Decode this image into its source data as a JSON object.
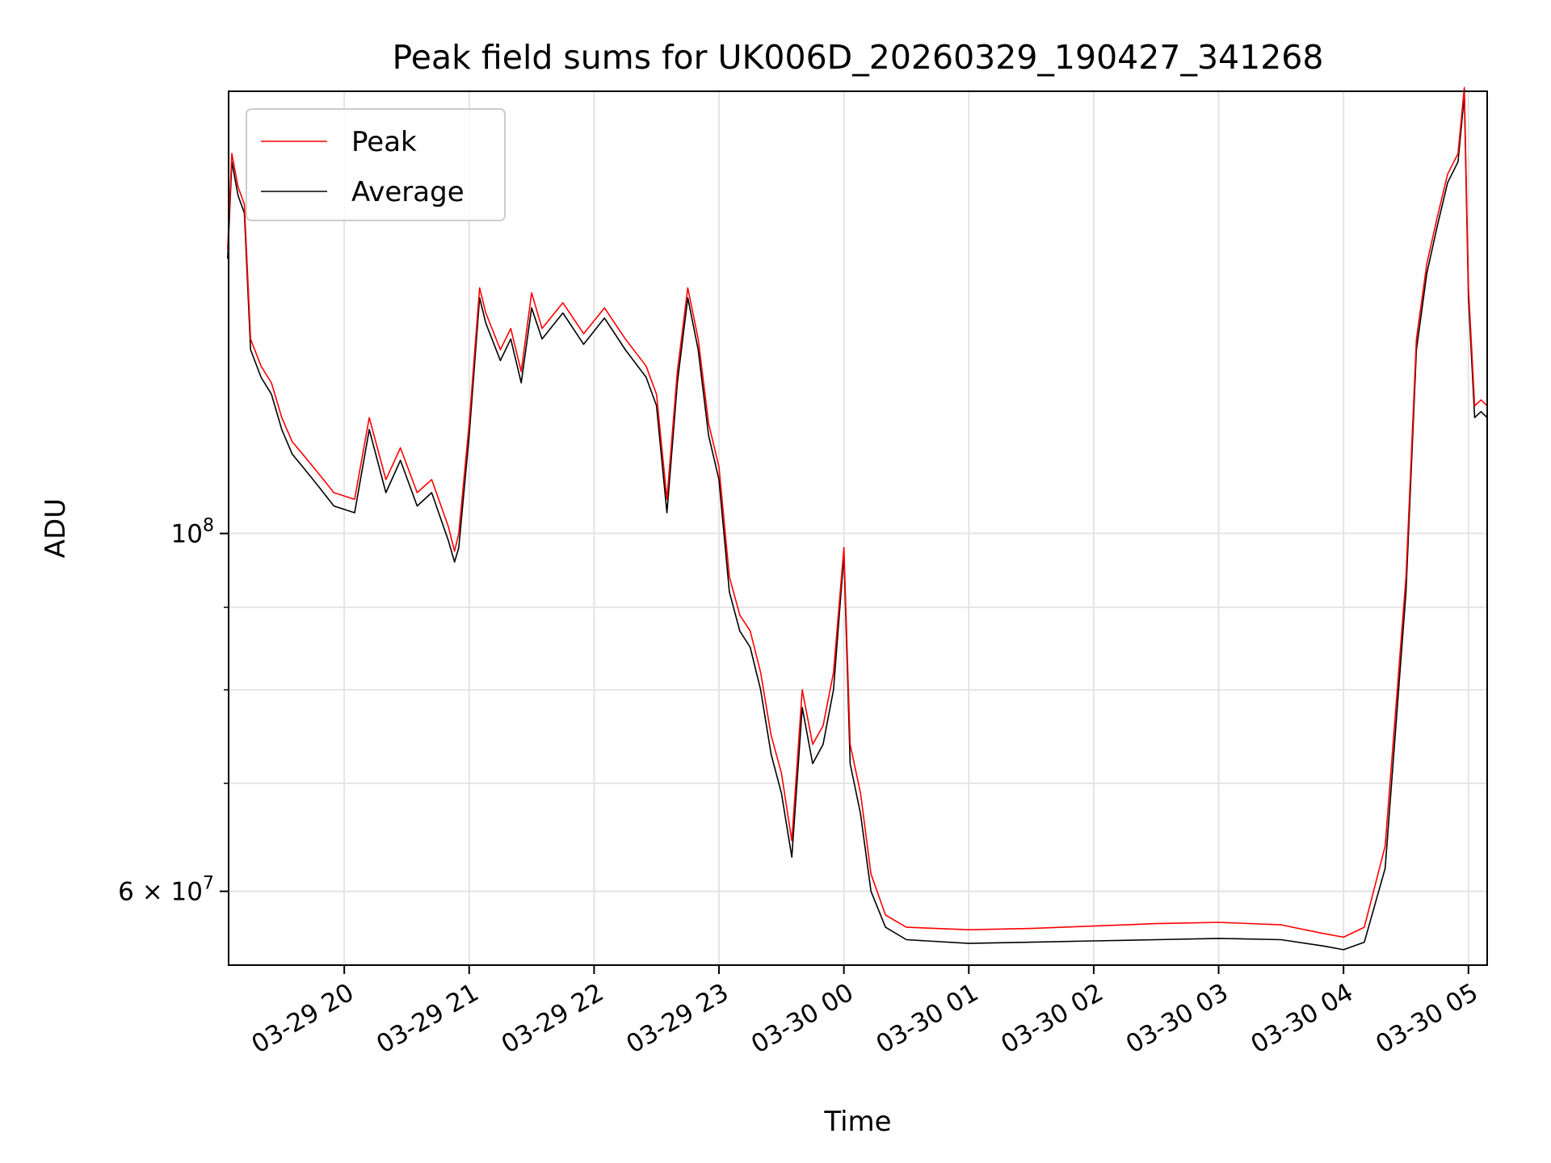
{
  "chart_data": {
    "type": "line",
    "title": "Peak field sums for UK006D_20260329_190427_341268",
    "xlabel": "Time",
    "ylabel": "ADU",
    "y_scale": "log",
    "ylim": [
      54000000,
      188000000
    ],
    "xlim": [
      "2026-03-29 19:04:27",
      "2026-03-30 05:09:00"
    ],
    "grid": true,
    "legend_position": "top-left",
    "x_ticks": [
      {
        "value": "2026-03-29 20:00",
        "label": "03-29 20"
      },
      {
        "value": "2026-03-29 21:00",
        "label": "03-29 21"
      },
      {
        "value": "2026-03-29 22:00",
        "label": "03-29 22"
      },
      {
        "value": "2026-03-29 23:00",
        "label": "03-29 23"
      },
      {
        "value": "2026-03-30 00:00",
        "label": "03-30 00"
      },
      {
        "value": "2026-03-30 01:00",
        "label": "03-30 01"
      },
      {
        "value": "2026-03-30 02:00",
        "label": "03-30 02"
      },
      {
        "value": "2026-03-30 03:00",
        "label": "03-30 03"
      },
      {
        "value": "2026-03-30 04:00",
        "label": "03-30 04"
      },
      {
        "value": "2026-03-30 05:00",
        "label": "03-30 05"
      }
    ],
    "y_ticks_major": [
      {
        "value": 60000000,
        "label_base": "6 × 10",
        "label_exp": "7"
      },
      {
        "value": 100000000,
        "label_base": "10",
        "label_exp": "8"
      }
    ],
    "y_ticks_minor": [
      60000000,
      70000000,
      80000000,
      90000000
    ],
    "series": [
      {
        "name": "Average",
        "color": "#000000",
        "x": [
          "2026-03-29 19:04",
          "2026-03-29 19:06",
          "2026-03-29 19:09",
          "2026-03-29 19:12",
          "2026-03-29 19:15",
          "2026-03-29 19:20",
          "2026-03-29 19:25",
          "2026-03-29 19:30",
          "2026-03-29 19:35",
          "2026-03-29 19:40",
          "2026-03-29 19:45",
          "2026-03-29 19:50",
          "2026-03-29 19:55",
          "2026-03-29 20:05",
          "2026-03-29 20:12",
          "2026-03-29 20:20",
          "2026-03-29 20:27",
          "2026-03-29 20:35",
          "2026-03-29 20:42",
          "2026-03-29 20:50",
          "2026-03-29 20:53",
          "2026-03-29 20:55",
          "2026-03-29 21:00",
          "2026-03-29 21:05",
          "2026-03-29 21:08",
          "2026-03-29 21:15",
          "2026-03-29 21:20",
          "2026-03-29 21:25",
          "2026-03-29 21:30",
          "2026-03-29 21:35",
          "2026-03-29 21:45",
          "2026-03-29 21:55",
          "2026-03-29 22:05",
          "2026-03-29 22:15",
          "2026-03-29 22:25",
          "2026-03-29 22:30",
          "2026-03-29 22:35",
          "2026-03-29 22:40",
          "2026-03-29 22:45",
          "2026-03-29 22:50",
          "2026-03-29 22:55",
          "2026-03-29 23:00",
          "2026-03-29 23:05",
          "2026-03-29 23:10",
          "2026-03-29 23:15",
          "2026-03-29 23:20",
          "2026-03-29 23:25",
          "2026-03-29 23:30",
          "2026-03-29 23:35",
          "2026-03-29 23:40",
          "2026-03-29 23:45",
          "2026-03-29 23:50",
          "2026-03-29 23:55",
          "2026-03-30 00:00",
          "2026-03-30 00:03",
          "2026-03-30 00:08",
          "2026-03-30 00:13",
          "2026-03-30 00:20",
          "2026-03-30 00:30",
          "2026-03-30 01:00",
          "2026-03-30 01:30",
          "2026-03-30 02:00",
          "2026-03-30 02:30",
          "2026-03-30 03:00",
          "2026-03-30 03:30",
          "2026-03-30 03:50",
          "2026-03-30 04:00",
          "2026-03-30 04:10",
          "2026-03-30 04:20",
          "2026-03-30 04:30",
          "2026-03-30 04:35",
          "2026-03-30 04:40",
          "2026-03-30 04:45",
          "2026-03-30 04:50",
          "2026-03-30 04:55",
          "2026-03-30 04:58",
          "2026-03-30 05:00",
          "2026-03-30 05:03",
          "2026-03-30 05:06",
          "2026-03-30 05:09"
        ],
        "values": [
          148000000,
          170000000,
          162000000,
          158000000,
          130000000,
          125000000,
          122000000,
          116000000,
          112000000,
          110000000,
          108000000,
          106000000,
          104000000,
          103000000,
          116000000,
          106000000,
          111000000,
          104000000,
          106000000,
          99000000,
          96000000,
          98000000,
          115000000,
          140000000,
          135000000,
          128000000,
          132000000,
          124000000,
          138000000,
          132000000,
          137000000,
          131000000,
          136000000,
          130000000,
          125000000,
          120000000,
          103000000,
          124000000,
          140000000,
          130000000,
          115000000,
          108000000,
          92000000,
          87000000,
          85000000,
          80000000,
          73000000,
          69000000,
          63000000,
          78000000,
          72000000,
          74000000,
          80000000,
          97000000,
          72000000,
          67000000,
          60000000,
          57000000,
          56000000,
          55700000,
          55800000,
          55900000,
          56000000,
          56100000,
          56000000,
          55500000,
          55200000,
          55800000,
          62000000,
          92000000,
          130000000,
          145000000,
          155000000,
          165000000,
          170000000,
          187000000,
          140000000,
          118000000,
          119000000,
          118000000
        ]
      },
      {
        "name": "Peak",
        "color": "#ff0000",
        "x": [
          "2026-03-29 19:04",
          "2026-03-29 19:06",
          "2026-03-29 19:09",
          "2026-03-29 19:12",
          "2026-03-29 19:15",
          "2026-03-29 19:20",
          "2026-03-29 19:25",
          "2026-03-29 19:30",
          "2026-03-29 19:35",
          "2026-03-29 19:40",
          "2026-03-29 19:45",
          "2026-03-29 19:50",
          "2026-03-29 19:55",
          "2026-03-29 20:05",
          "2026-03-29 20:12",
          "2026-03-29 20:20",
          "2026-03-29 20:27",
          "2026-03-29 20:35",
          "2026-03-29 20:42",
          "2026-03-29 20:50",
          "2026-03-29 20:53",
          "2026-03-29 20:55",
          "2026-03-29 21:00",
          "2026-03-29 21:05",
          "2026-03-29 21:08",
          "2026-03-29 21:15",
          "2026-03-29 21:20",
          "2026-03-29 21:25",
          "2026-03-29 21:30",
          "2026-03-29 21:35",
          "2026-03-29 21:45",
          "2026-03-29 21:55",
          "2026-03-29 22:05",
          "2026-03-29 22:15",
          "2026-03-29 22:25",
          "2026-03-29 22:30",
          "2026-03-29 22:35",
          "2026-03-29 22:40",
          "2026-03-29 22:45",
          "2026-03-29 22:50",
          "2026-03-29 22:55",
          "2026-03-29 23:00",
          "2026-03-29 23:05",
          "2026-03-29 23:10",
          "2026-03-29 23:15",
          "2026-03-29 23:20",
          "2026-03-29 23:25",
          "2026-03-29 23:30",
          "2026-03-29 23:35",
          "2026-03-29 23:40",
          "2026-03-29 23:45",
          "2026-03-29 23:50",
          "2026-03-29 23:55",
          "2026-03-30 00:00",
          "2026-03-30 00:03",
          "2026-03-30 00:08",
          "2026-03-30 00:13",
          "2026-03-30 00:20",
          "2026-03-30 00:30",
          "2026-03-30 01:00",
          "2026-03-30 01:30",
          "2026-03-30 02:00",
          "2026-03-30 02:30",
          "2026-03-30 03:00",
          "2026-03-30 03:30",
          "2026-03-30 03:50",
          "2026-03-30 04:00",
          "2026-03-30 04:10",
          "2026-03-30 04:20",
          "2026-03-30 04:30",
          "2026-03-30 04:35",
          "2026-03-30 04:40",
          "2026-03-30 04:45",
          "2026-03-30 04:50",
          "2026-03-30 04:55",
          "2026-03-30 04:58",
          "2026-03-30 05:00",
          "2026-03-30 05:03",
          "2026-03-30 05:06",
          "2026-03-30 05:09"
        ],
        "values": [
          150000000,
          172000000,
          164000000,
          160000000,
          132000000,
          127000000,
          124000000,
          118000000,
          114000000,
          112000000,
          110000000,
          108000000,
          106000000,
          105000000,
          118000000,
          108000000,
          113000000,
          106000000,
          108000000,
          101000000,
          97500000,
          100000000,
          117000000,
          142000000,
          137000000,
          130000000,
          134000000,
          126000000,
          141000000,
          134000000,
          139000000,
          133000000,
          138000000,
          132000000,
          127000000,
          122000000,
          105000000,
          126000000,
          142000000,
          132000000,
          117000000,
          110000000,
          94000000,
          89000000,
          87000000,
          82000000,
          75000000,
          71000000,
          64500000,
          80000000,
          74000000,
          76000000,
          82000000,
          98000000,
          74000000,
          69000000,
          61500000,
          58000000,
          57000000,
          56800000,
          56900000,
          57100000,
          57300000,
          57400000,
          57200000,
          56500000,
          56200000,
          57000000,
          64000000,
          94000000,
          132000000,
          147000000,
          157000000,
          167000000,
          172000000,
          189000000,
          142000000,
          120000000,
          121000000,
          120000000
        ]
      }
    ]
  }
}
